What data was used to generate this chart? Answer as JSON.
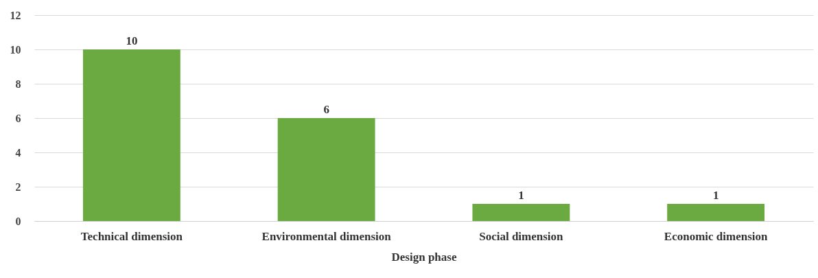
{
  "chart_data": {
    "type": "bar",
    "xlabel": "Design phase",
    "categories": [
      "Technical dimension",
      "Environmental dimension",
      "Social dimension",
      "Economic dimension"
    ],
    "values": [
      10,
      6,
      1,
      1
    ],
    "color": "#6aaa40",
    "ylim": [
      0,
      12
    ],
    "yticks": [
      0,
      2,
      4,
      6,
      8,
      10,
      12
    ],
    "grid": "y",
    "data_labels": true
  }
}
